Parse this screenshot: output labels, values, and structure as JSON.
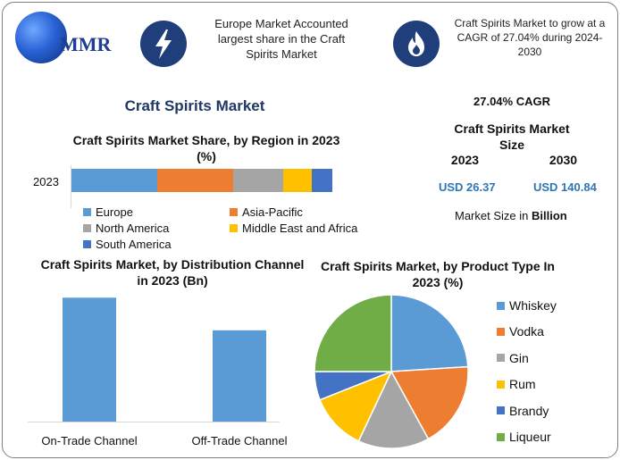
{
  "header": {
    "logo_text": "MMR",
    "info1": "Europe Market Accounted largest share in the Craft Spirits Market",
    "info2": "Craft Spirits Market to grow at a CAGR of 27.04% during 2024-2030",
    "info1_icon": "lightning-bolt-icon",
    "info2_icon": "flame-icon"
  },
  "main_title": "Craft Spirits Market",
  "stats": {
    "cagr": "27.04% CAGR",
    "size_title": "Craft Spirits Market Size",
    "year1": "2023",
    "year2": "2030",
    "value1": "USD 26.37",
    "value2": "USD 140.84",
    "unit_prefix": "Market Size in ",
    "unit_bold": "Billion"
  },
  "chart_data": [
    {
      "type": "bar",
      "orientation": "horizontal-stacked",
      "title": "Craft Spirits Market Share, by Region in 2023 (%)",
      "categories": [
        "2023"
      ],
      "series": [
        {
          "name": "Europe",
          "values": [
            33
          ],
          "color": "#5b9bd5"
        },
        {
          "name": "Asia-Pacific",
          "values": [
            29
          ],
          "color": "#ed7d31"
        },
        {
          "name": "North America",
          "values": [
            19
          ],
          "color": "#a5a5a5"
        },
        {
          "name": "Middle East and Africa",
          "values": [
            11
          ],
          "color": "#ffc000"
        },
        {
          "name": "South America",
          "values": [
            8
          ],
          "color": "#4472c4"
        }
      ],
      "legend": "bottom"
    },
    {
      "type": "bar",
      "title": "Craft Spirits Market, by Distribution Channel in 2023 (Bn)",
      "categories": [
        "On-Trade Channel",
        "Off-Trade Channel"
      ],
      "values": [
        15.2,
        11.2
      ],
      "color": "#5b9bd5",
      "ylim": [
        0,
        16
      ]
    },
    {
      "type": "pie",
      "title": "Craft Spirits Market, by Product Type In 2023 (%)",
      "labels": [
        "Whiskey",
        "Vodka",
        "Gin",
        "Rum",
        "Brandy",
        "Liqueur"
      ],
      "values": [
        24,
        18,
        15,
        12,
        6,
        25
      ],
      "colors": [
        "#5b9bd5",
        "#ed7d31",
        "#a5a5a5",
        "#ffc000",
        "#4472c4",
        "#70ad47"
      ],
      "legend": "right"
    }
  ]
}
